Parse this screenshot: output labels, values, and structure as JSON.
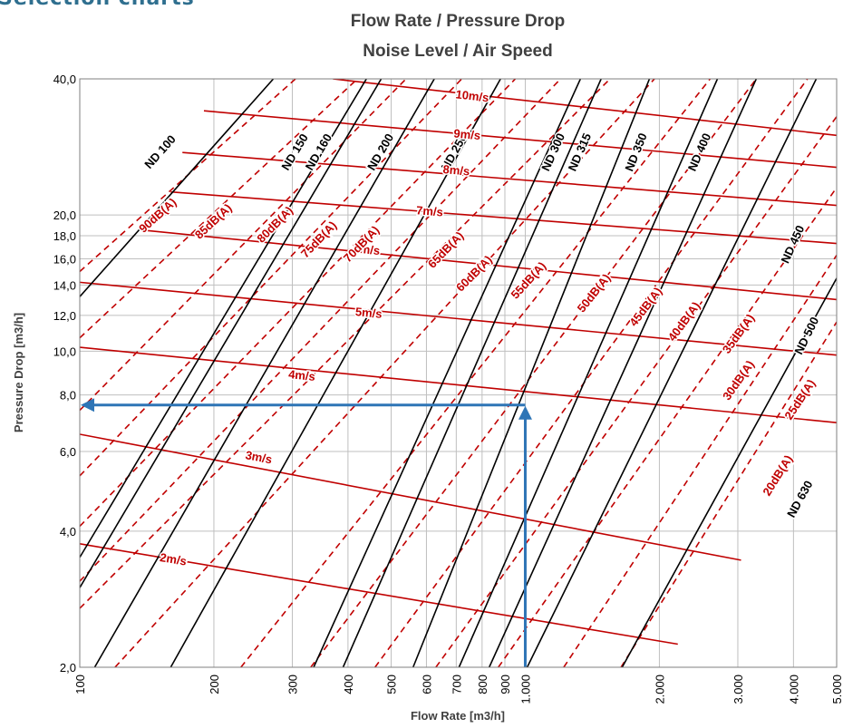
{
  "header_text": "Selection charts",
  "chart_data": {
    "type": "line",
    "title": "Flow Rate / Pressure Drop",
    "subtitle": "Noise Level / Air Speed",
    "xlabel": "Flow Rate [m3/h]",
    "ylabel": "Pressure Drop [m3/h]",
    "x_scale": "log",
    "y_scale": "log",
    "xlim": [
      100,
      5000
    ],
    "ylim": [
      2,
      40
    ],
    "grid": true,
    "x_ticks": [
      {
        "v": 100,
        "label": "100"
      },
      {
        "v": 200,
        "label": "200"
      },
      {
        "v": 300,
        "label": "300"
      },
      {
        "v": 400,
        "label": "400"
      },
      {
        "v": 500,
        "label": "500"
      },
      {
        "v": 600,
        "label": "600"
      },
      {
        "v": 700,
        "label": "700"
      },
      {
        "v": 800,
        "label": "800"
      },
      {
        "v": 900,
        "label": "900"
      },
      {
        "v": 1000,
        "label": "1.000"
      },
      {
        "v": 2000,
        "label": "2.000"
      },
      {
        "v": 3000,
        "label": "3.000"
      },
      {
        "v": 4000,
        "label": "4.000"
      },
      {
        "v": 5000,
        "label": "5.000"
      }
    ],
    "y_ticks": [
      {
        "v": 2,
        "label": "2,0"
      },
      {
        "v": 4,
        "label": "4,0"
      },
      {
        "v": 6,
        "label": "6,0"
      },
      {
        "v": 8,
        "label": "8,0"
      },
      {
        "v": 10,
        "label": "10,0"
      },
      {
        "v": 12,
        "label": "12,0"
      },
      {
        "v": 14,
        "label": "14,0"
      },
      {
        "v": 16,
        "label": "16,0"
      },
      {
        "v": 18,
        "label": "18,0"
      },
      {
        "v": 20,
        "label": "20,0"
      },
      {
        "v": 40,
        "label": "40,0"
      }
    ],
    "colors": {
      "duct": "#000000",
      "speed": "#c00000",
      "noise": "#c00000",
      "arrow": "#2e75b6"
    },
    "duct_series": [
      {
        "name": "ND 100",
        "x0": 100,
        "y0": 13.2,
        "x1": 272,
        "y1": 40
      },
      {
        "name": "ND 150",
        "x0": 100,
        "y0": 3.5,
        "x1": 440,
        "y1": 40
      },
      {
        "name": "ND 160",
        "x0": 100,
        "y0": 3.0,
        "x1": 475,
        "y1": 40
      },
      {
        "name": "ND 200",
        "x0": 108,
        "y0": 2.0,
        "x1": 625,
        "y1": 40
      },
      {
        "name": "ND 250",
        "x0": 160,
        "y0": 2.0,
        "x1": 880,
        "y1": 40
      },
      {
        "name": "ND 300",
        "x0": 335,
        "y0": 2.0,
        "x1": 1330,
        "y1": 40
      },
      {
        "name": "ND 315",
        "x0": 390,
        "y0": 2.0,
        "x1": 1480,
        "y1": 40
      },
      {
        "name": "ND 350",
        "x0": 560,
        "y0": 2.0,
        "x1": 1900,
        "y1": 40
      },
      {
        "name": "ND 400",
        "x0": 710,
        "y0": 2.0,
        "x1": 2700,
        "y1": 40
      },
      {
        "name": "ND 450",
        "x0": 830,
        "y0": 2.0,
        "x1": 3300,
        "y1": 40
      },
      {
        "name": "ND 500",
        "x0": 1010,
        "y0": 2.0,
        "x1": 4500,
        "y1": 40
      },
      {
        "name": "ND 630",
        "x0": 1650,
        "y0": 2.0,
        "x1": 5000,
        "y1": 14.5
      }
    ],
    "air_speed_series": [
      {
        "name": "2m/s",
        "x0": 100,
        "y0": 3.75,
        "x1": 2200,
        "y1": 2.25
      },
      {
        "name": "3m/s",
        "x0": 100,
        "y0": 6.55,
        "x1": 3050,
        "y1": 3.45
      },
      {
        "name": "4m/s",
        "x0": 100,
        "y0": 10.2,
        "x1": 5000,
        "y1": 6.95
      },
      {
        "name": "5m/s",
        "x0": 100,
        "y0": 14.2,
        "x1": 5000,
        "y1": 9.8
      },
      {
        "name": "6m/s",
        "x0": 140,
        "y0": 18.5,
        "x1": 5000,
        "y1": 13.0
      },
      {
        "name": "7m/s",
        "x0": 160,
        "y0": 22.5,
        "x1": 5000,
        "y1": 17.3
      },
      {
        "name": "8m/s",
        "x0": 170,
        "y0": 27.5,
        "x1": 5000,
        "y1": 21.0
      },
      {
        "name": "9m/s",
        "x0": 190,
        "y0": 34.0,
        "x1": 5000,
        "y1": 25.5
      },
      {
        "name": "10m/s",
        "x0": 370,
        "y0": 40.0,
        "x1": 5000,
        "y1": 30.0
      }
    ],
    "noise_series": [
      {
        "name": "90dB(A)",
        "x0": 100,
        "y0": 15.0,
        "x1": 305,
        "y1": 40
      },
      {
        "name": "85dB(A)",
        "x0": 100,
        "y0": 10.7,
        "x1": 420,
        "y1": 40
      },
      {
        "name": "80dB(A)",
        "x0": 100,
        "y0": 7.4,
        "x1": 540,
        "y1": 40
      },
      {
        "name": "75dB(A)",
        "x0": 100,
        "y0": 5.3,
        "x1": 720,
        "y1": 40
      },
      {
        "name": "70dB(A)",
        "x0": 100,
        "y0": 4.1,
        "x1": 950,
        "y1": 40
      },
      {
        "name": "65dB(A)",
        "x0": 100,
        "y0": 3.1,
        "x1": 1200,
        "y1": 40
      },
      {
        "name": "60dB(A)",
        "x0": 100,
        "y0": 2.7,
        "x1": 1550,
        "y1": 40
      },
      {
        "name": "55dB(A)",
        "x0": 120,
        "y0": 2.0,
        "x1": 1950,
        "y1": 40
      },
      {
        "name": "50dB(A)",
        "x0": 230,
        "y0": 2.0,
        "x1": 2600,
        "y1": 40
      },
      {
        "name": "45dB(A)",
        "x0": 330,
        "y0": 2.0,
        "x1": 3300,
        "y1": 40
      },
      {
        "name": "40dB(A)",
        "x0": 460,
        "y0": 2.0,
        "x1": 4300,
        "y1": 40
      },
      {
        "name": "35dB(A)",
        "x0": 630,
        "y0": 2.0,
        "x1": 5000,
        "y1": 33
      },
      {
        "name": "30dB(A)",
        "x0": 870,
        "y0": 2.0,
        "x1": 5000,
        "y1": 23
      },
      {
        "name": "25dB(A)",
        "x0": 1220,
        "y0": 2.0,
        "x1": 5000,
        "y1": 16.3
      },
      {
        "name": "20dB(A)",
        "x0": 1640,
        "y0": 2.0,
        "x1": 5000,
        "y1": 11.6
      }
    ],
    "duct_labels": [
      {
        "name": "ND 100",
        "x": 152,
        "y": 27.5
      },
      {
        "name": "ND 150",
        "x": 305,
        "y": 27.5
      },
      {
        "name": "ND 160",
        "x": 345,
        "y": 27.5
      },
      {
        "name": "ND 200",
        "x": 475,
        "y": 27.5
      },
      {
        "name": "ND 250",
        "x": 695,
        "y": 27.5
      },
      {
        "name": "ND 300",
        "x": 1160,
        "y": 27.5
      },
      {
        "name": "ND 315",
        "x": 1330,
        "y": 27.5
      },
      {
        "name": "ND 350",
        "x": 1780,
        "y": 27.5
      },
      {
        "name": "ND 400",
        "x": 2470,
        "y": 27.5
      },
      {
        "name": "ND 450",
        "x": 4000,
        "y": 17.2
      },
      {
        "name": "ND 500",
        "x": 4300,
        "y": 10.8
      },
      {
        "name": "ND 630",
        "x": 4150,
        "y": 4.7
      }
    ],
    "speed_labels": [
      {
        "name": "10m/s",
        "x": 760,
        "y": 36.5
      },
      {
        "name": "9m/s",
        "x": 740,
        "y": 30.0
      },
      {
        "name": "8m/s",
        "x": 700,
        "y": 25.0
      },
      {
        "name": "7m/s",
        "x": 610,
        "y": 20.3
      },
      {
        "name": "6m/s",
        "x": 440,
        "y": 16.7
      },
      {
        "name": "5m/s",
        "x": 445,
        "y": 12.1
      },
      {
        "name": "4m/s",
        "x": 315,
        "y": 8.8
      },
      {
        "name": "3m/s",
        "x": 252,
        "y": 5.8
      },
      {
        "name": "2m/s",
        "x": 162,
        "y": 3.45
      }
    ],
    "noise_labels": [
      {
        "name": "90dB(A)",
        "x": 150,
        "y": 19.9
      },
      {
        "name": "85dB(A)",
        "x": 200,
        "y": 19.3
      },
      {
        "name": "80dB(A)",
        "x": 275,
        "y": 19.0
      },
      {
        "name": "75dB(A)",
        "x": 345,
        "y": 17.6
      },
      {
        "name": "70dB(A)",
        "x": 430,
        "y": 17.2
      },
      {
        "name": "65dB(A)",
        "x": 665,
        "y": 16.7
      },
      {
        "name": "60dB(A)",
        "x": 770,
        "y": 14.8
      },
      {
        "name": "55dB(A)",
        "x": 1020,
        "y": 14.3
      },
      {
        "name": "50dB(A)",
        "x": 1430,
        "y": 13.4
      },
      {
        "name": "45dB(A)",
        "x": 1870,
        "y": 12.5
      },
      {
        "name": "40dB(A)",
        "x": 2280,
        "y": 11.6
      },
      {
        "name": "35dB(A)",
        "x": 3020,
        "y": 10.9
      },
      {
        "name": "30dB(A)",
        "x": 3020,
        "y": 8.6
      },
      {
        "name": "25dB(A)",
        "x": 4150,
        "y": 7.8
      },
      {
        "name": "20dB(A)",
        "x": 3700,
        "y": 5.3
      }
    ],
    "example_reading": {
      "flow_rate": 1000,
      "pressure_drop": 7.6
    }
  }
}
